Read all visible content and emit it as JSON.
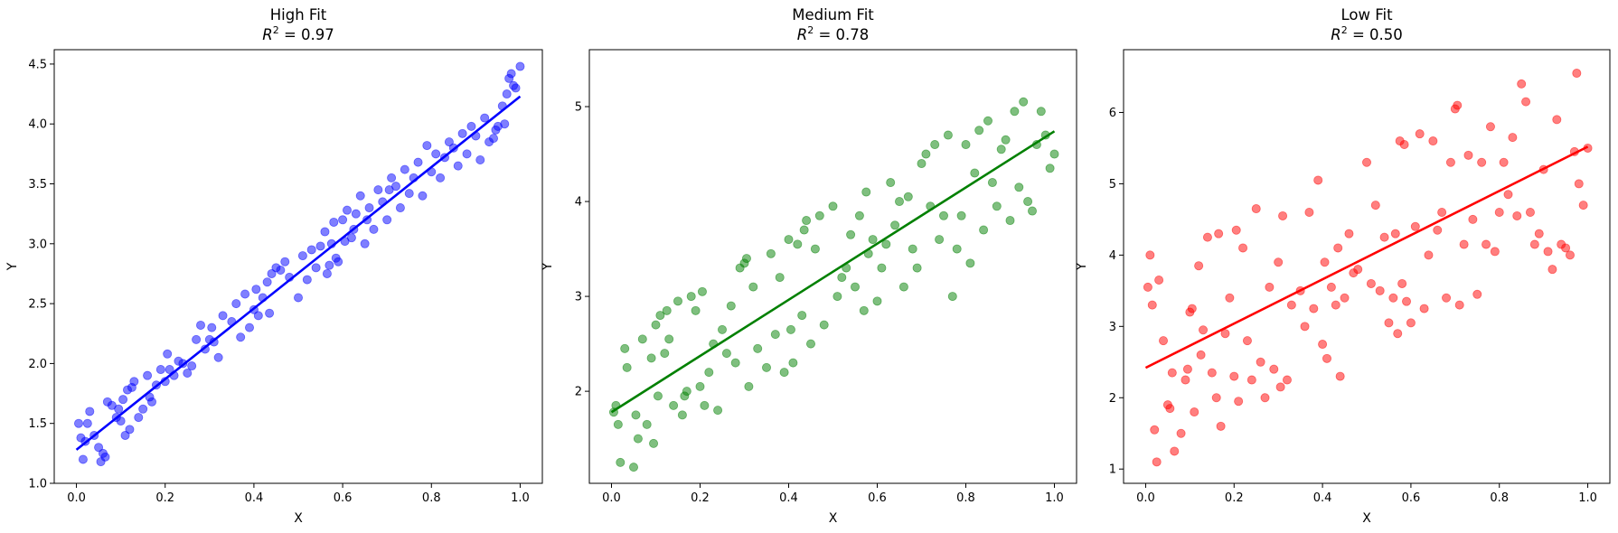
{
  "chart_data": [
    {
      "type": "scatter",
      "title": "High Fit",
      "subtitle_prefix": "R",
      "subtitle_sup": "2",
      "subtitle_value": " = 0.97",
      "xlabel": "X",
      "ylabel": "Y",
      "xlim": [
        -0.05,
        1.05
      ],
      "ylim": [
        1.0,
        4.62
      ],
      "xticks": [
        0.0,
        0.2,
        0.4,
        0.6,
        0.8,
        1.0
      ],
      "xtick_labels": [
        "0.0",
        "0.2",
        "0.4",
        "0.6",
        "0.8",
        "1.0"
      ],
      "yticks": [
        1.0,
        1.5,
        2.0,
        2.5,
        3.0,
        3.5,
        4.0,
        4.5
      ],
      "ytick_labels": [
        "1.0",
        "1.5",
        "2.0",
        "2.5",
        "3.0",
        "3.5",
        "4.0",
        "4.5"
      ],
      "color": "#0000ff",
      "line_color": "#0000ff",
      "fit_line": {
        "x": [
          0.0,
          1.0
        ],
        "y": [
          1.28,
          4.23
        ]
      },
      "points": {
        "x": [
          0.005,
          0.01,
          0.015,
          0.02,
          0.025,
          0.03,
          0.04,
          0.05,
          0.055,
          0.06,
          0.065,
          0.07,
          0.08,
          0.09,
          0.095,
          0.1,
          0.105,
          0.11,
          0.115,
          0.12,
          0.125,
          0.13,
          0.14,
          0.15,
          0.16,
          0.165,
          0.17,
          0.18,
          0.19,
          0.2,
          0.205,
          0.21,
          0.22,
          0.23,
          0.24,
          0.25,
          0.26,
          0.27,
          0.28,
          0.29,
          0.3,
          0.305,
          0.31,
          0.32,
          0.33,
          0.35,
          0.36,
          0.37,
          0.38,
          0.39,
          0.4,
          0.405,
          0.41,
          0.42,
          0.43,
          0.435,
          0.44,
          0.45,
          0.46,
          0.47,
          0.48,
          0.5,
          0.51,
          0.52,
          0.53,
          0.54,
          0.55,
          0.56,
          0.565,
          0.57,
          0.575,
          0.58,
          0.585,
          0.59,
          0.6,
          0.605,
          0.61,
          0.62,
          0.625,
          0.63,
          0.64,
          0.65,
          0.655,
          0.66,
          0.67,
          0.68,
          0.69,
          0.7,
          0.705,
          0.71,
          0.72,
          0.73,
          0.74,
          0.75,
          0.76,
          0.77,
          0.78,
          0.79,
          0.8,
          0.81,
          0.82,
          0.83,
          0.84,
          0.85,
          0.86,
          0.87,
          0.88,
          0.89,
          0.9,
          0.91,
          0.92,
          0.93,
          0.94,
          0.945,
          0.95,
          0.96,
          0.965,
          0.97,
          0.975,
          0.98,
          0.985,
          0.99,
          1.0
        ],
        "y": [
          1.5,
          1.38,
          1.2,
          1.35,
          1.5,
          1.6,
          1.4,
          1.3,
          1.18,
          1.25,
          1.22,
          1.68,
          1.65,
          1.55,
          1.62,
          1.52,
          1.7,
          1.4,
          1.78,
          1.45,
          1.8,
          1.85,
          1.55,
          1.62,
          1.9,
          1.72,
          1.68,
          1.82,
          1.95,
          1.85,
          2.08,
          1.95,
          1.9,
          2.02,
          2.0,
          1.92,
          1.98,
          2.2,
          2.32,
          2.12,
          2.2,
          2.3,
          2.18,
          2.05,
          2.4,
          2.35,
          2.5,
          2.22,
          2.58,
          2.3,
          2.45,
          2.62,
          2.4,
          2.55,
          2.68,
          2.42,
          2.75,
          2.8,
          2.78,
          2.85,
          2.72,
          2.55,
          2.9,
          2.7,
          2.95,
          2.8,
          2.98,
          3.1,
          2.75,
          2.82,
          3.0,
          3.18,
          2.88,
          2.85,
          3.2,
          3.02,
          3.28,
          3.05,
          3.12,
          3.25,
          3.4,
          3.0,
          3.2,
          3.3,
          3.12,
          3.45,
          3.35,
          3.2,
          3.45,
          3.55,
          3.48,
          3.3,
          3.62,
          3.42,
          3.55,
          3.68,
          3.4,
          3.82,
          3.6,
          3.75,
          3.55,
          3.72,
          3.85,
          3.8,
          3.65,
          3.92,
          3.75,
          3.98,
          3.9,
          3.7,
          4.05,
          3.85,
          3.88,
          3.95,
          3.98,
          4.15,
          4.0,
          4.25,
          4.38,
          4.42,
          4.32,
          4.3,
          4.48
        ]
      }
    },
    {
      "type": "scatter",
      "title": "Medium Fit",
      "subtitle_prefix": "R",
      "subtitle_sup": "2",
      "subtitle_value": " = 0.78",
      "xlabel": "X",
      "ylabel": "Y",
      "xlim": [
        -0.05,
        1.05
      ],
      "ylim": [
        1.03,
        5.6
      ],
      "xticks": [
        0.0,
        0.2,
        0.4,
        0.6,
        0.8,
        1.0
      ],
      "xtick_labels": [
        "0.0",
        "0.2",
        "0.4",
        "0.6",
        "0.8",
        "1.0"
      ],
      "yticks": [
        2,
        3,
        4,
        5
      ],
      "ytick_labels": [
        "2",
        "3",
        "4",
        "5"
      ],
      "color": "#008000",
      "line_color": "#008000",
      "fit_line": {
        "x": [
          0.0,
          1.0
        ],
        "y": [
          1.78,
          4.74
        ]
      },
      "points": {
        "x": [
          0.005,
          0.01,
          0.015,
          0.02,
          0.03,
          0.035,
          0.05,
          0.055,
          0.06,
          0.07,
          0.08,
          0.09,
          0.095,
          0.1,
          0.105,
          0.11,
          0.12,
          0.125,
          0.13,
          0.14,
          0.15,
          0.16,
          0.165,
          0.17,
          0.18,
          0.19,
          0.2,
          0.205,
          0.21,
          0.22,
          0.23,
          0.24,
          0.25,
          0.26,
          0.27,
          0.28,
          0.29,
          0.3,
          0.305,
          0.31,
          0.32,
          0.33,
          0.35,
          0.36,
          0.37,
          0.38,
          0.39,
          0.4,
          0.405,
          0.41,
          0.42,
          0.43,
          0.435,
          0.44,
          0.45,
          0.46,
          0.47,
          0.48,
          0.5,
          0.51,
          0.52,
          0.53,
          0.54,
          0.55,
          0.56,
          0.57,
          0.575,
          0.58,
          0.59,
          0.6,
          0.61,
          0.62,
          0.63,
          0.64,
          0.65,
          0.66,
          0.67,
          0.68,
          0.69,
          0.7,
          0.71,
          0.72,
          0.73,
          0.74,
          0.75,
          0.76,
          0.77,
          0.78,
          0.79,
          0.8,
          0.81,
          0.82,
          0.83,
          0.84,
          0.85,
          0.86,
          0.87,
          0.88,
          0.89,
          0.9,
          0.91,
          0.92,
          0.93,
          0.94,
          0.95,
          0.96,
          0.97,
          0.98,
          0.99,
          1.0
        ],
        "y": [
          1.78,
          1.85,
          1.65,
          1.25,
          2.45,
          2.25,
          1.2,
          1.75,
          1.5,
          2.55,
          1.65,
          2.35,
          1.45,
          2.7,
          1.95,
          2.8,
          2.4,
          2.85,
          2.55,
          1.85,
          2.95,
          1.75,
          1.95,
          2.0,
          3.0,
          2.85,
          2.05,
          3.05,
          1.85,
          2.2,
          2.5,
          1.8,
          2.65,
          2.4,
          2.9,
          2.3,
          3.3,
          3.35,
          3.4,
          2.05,
          3.1,
          2.45,
          2.25,
          3.45,
          2.6,
          3.2,
          2.2,
          3.6,
          2.65,
          2.3,
          3.55,
          2.8,
          3.7,
          3.8,
          2.5,
          3.5,
          3.85,
          2.7,
          3.95,
          3.0,
          3.2,
          3.3,
          3.65,
          3.1,
          3.85,
          2.85,
          4.1,
          3.45,
          3.6,
          2.95,
          3.3,
          3.55,
          4.2,
          3.75,
          4.0,
          3.1,
          4.05,
          3.5,
          3.3,
          4.4,
          4.5,
          3.95,
          4.6,
          3.6,
          3.85,
          4.7,
          3.0,
          3.5,
          3.85,
          4.6,
          3.35,
          4.3,
          4.75,
          3.7,
          4.85,
          4.2,
          3.95,
          4.55,
          4.65,
          3.8,
          4.95,
          4.15,
          5.05,
          4.0,
          3.9,
          4.6,
          4.95,
          4.7,
          4.35,
          4.5
        ]
      }
    },
    {
      "type": "scatter",
      "title": "Low Fit",
      "subtitle_prefix": "R",
      "subtitle_sup": "2",
      "subtitle_value": " = 0.50",
      "xlabel": "X",
      "ylabel": "Y",
      "xlim": [
        -0.05,
        1.05
      ],
      "ylim": [
        0.8,
        6.88
      ],
      "xticks": [
        0.0,
        0.2,
        0.4,
        0.6,
        0.8,
        1.0
      ],
      "xtick_labels": [
        "0.0",
        "0.2",
        "0.4",
        "0.6",
        "0.8",
        "1.0"
      ],
      "yticks": [
        1,
        2,
        3,
        4,
        5,
        6
      ],
      "ytick_labels": [
        "1",
        "2",
        "3",
        "4",
        "5",
        "6"
      ],
      "color": "#ff0000",
      "line_color": "#ff0000",
      "fit_line": {
        "x": [
          0.0,
          1.0
        ],
        "y": [
          2.42,
          5.52
        ]
      },
      "points": {
        "x": [
          0.005,
          0.01,
          0.015,
          0.02,
          0.025,
          0.03,
          0.04,
          0.05,
          0.055,
          0.06,
          0.065,
          0.08,
          0.09,
          0.095,
          0.1,
          0.105,
          0.11,
          0.12,
          0.125,
          0.13,
          0.14,
          0.15,
          0.16,
          0.165,
          0.17,
          0.18,
          0.19,
          0.2,
          0.205,
          0.21,
          0.22,
          0.23,
          0.24,
          0.25,
          0.26,
          0.27,
          0.28,
          0.29,
          0.3,
          0.305,
          0.31,
          0.32,
          0.33,
          0.35,
          0.36,
          0.37,
          0.38,
          0.39,
          0.4,
          0.405,
          0.41,
          0.42,
          0.43,
          0.435,
          0.44,
          0.45,
          0.46,
          0.47,
          0.48,
          0.5,
          0.51,
          0.52,
          0.53,
          0.54,
          0.55,
          0.56,
          0.565,
          0.57,
          0.575,
          0.58,
          0.585,
          0.59,
          0.6,
          0.61,
          0.62,
          0.63,
          0.64,
          0.65,
          0.66,
          0.67,
          0.68,
          0.69,
          0.7,
          0.705,
          0.71,
          0.72,
          0.73,
          0.74,
          0.75,
          0.76,
          0.77,
          0.78,
          0.79,
          0.8,
          0.81,
          0.82,
          0.83,
          0.84,
          0.85,
          0.86,
          0.87,
          0.88,
          0.89,
          0.9,
          0.91,
          0.92,
          0.93,
          0.94,
          0.95,
          0.96,
          0.97,
          0.975,
          0.98,
          0.99,
          1.0
        ],
        "y": [
          3.55,
          4.0,
          3.3,
          1.55,
          1.1,
          3.65,
          2.8,
          1.9,
          1.85,
          2.35,
          1.25,
          1.5,
          2.25,
          2.4,
          3.2,
          3.25,
          1.8,
          3.85,
          2.6,
          2.95,
          4.25,
          2.35,
          2.0,
          4.3,
          1.6,
          2.9,
          3.4,
          2.3,
          4.35,
          1.95,
          4.1,
          2.8,
          2.25,
          4.65,
          2.5,
          2.0,
          3.55,
          2.4,
          3.9,
          2.15,
          4.55,
          2.25,
          3.3,
          3.5,
          3.0,
          4.6,
          3.25,
          5.05,
          2.75,
          3.9,
          2.55,
          3.55,
          3.3,
          4.1,
          2.3,
          3.4,
          4.3,
          3.75,
          3.8,
          5.3,
          3.6,
          4.7,
          3.5,
          4.25,
          3.05,
          3.4,
          4.3,
          2.9,
          5.6,
          3.6,
          5.55,
          3.35,
          3.05,
          4.4,
          5.7,
          3.25,
          4.0,
          5.6,
          4.35,
          4.6,
          3.4,
          5.3,
          6.05,
          6.1,
          3.3,
          4.15,
          5.4,
          4.5,
          3.45,
          5.3,
          4.15,
          5.8,
          4.05,
          4.6,
          5.3,
          4.85,
          5.65,
          4.55,
          6.4,
          6.15,
          4.6,
          4.15,
          4.3,
          5.2,
          4.05,
          3.8,
          5.9,
          4.15,
          4.1,
          4.0,
          5.45,
          6.55,
          5.0,
          4.7,
          5.5
        ]
      }
    }
  ]
}
